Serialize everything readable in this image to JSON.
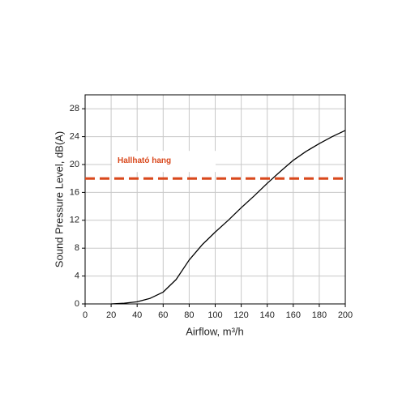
{
  "chart_data": {
    "type": "line",
    "x_label": "Airflow, m³/h",
    "y_label": "Sound Pressure Level, dB(A)",
    "x": [
      20,
      30,
      40,
      50,
      60,
      70,
      80,
      90,
      100,
      110,
      120,
      130,
      140,
      150,
      160,
      170,
      180,
      190,
      200
    ],
    "series": [
      {
        "color": "#000000",
        "values": [
          0,
          0.1,
          0.3,
          0.8,
          1.7,
          3.5,
          6.3,
          8.5,
          10.3,
          12,
          13.8,
          15.5,
          17.3,
          19,
          20.6,
          21.9,
          23,
          24,
          24.9
        ]
      }
    ],
    "xlim": [
      0,
      200
    ],
    "xticks": [
      0,
      20,
      40,
      60,
      80,
      100,
      120,
      140,
      160,
      180,
      200
    ],
    "ylim": [
      0,
      30
    ],
    "yticks": [
      0,
      4,
      8,
      12,
      16,
      20,
      24,
      28
    ],
    "grid": true,
    "reference_line": {
      "value": 18,
      "label": "Hallható hang",
      "color": "#d9481c"
    }
  }
}
